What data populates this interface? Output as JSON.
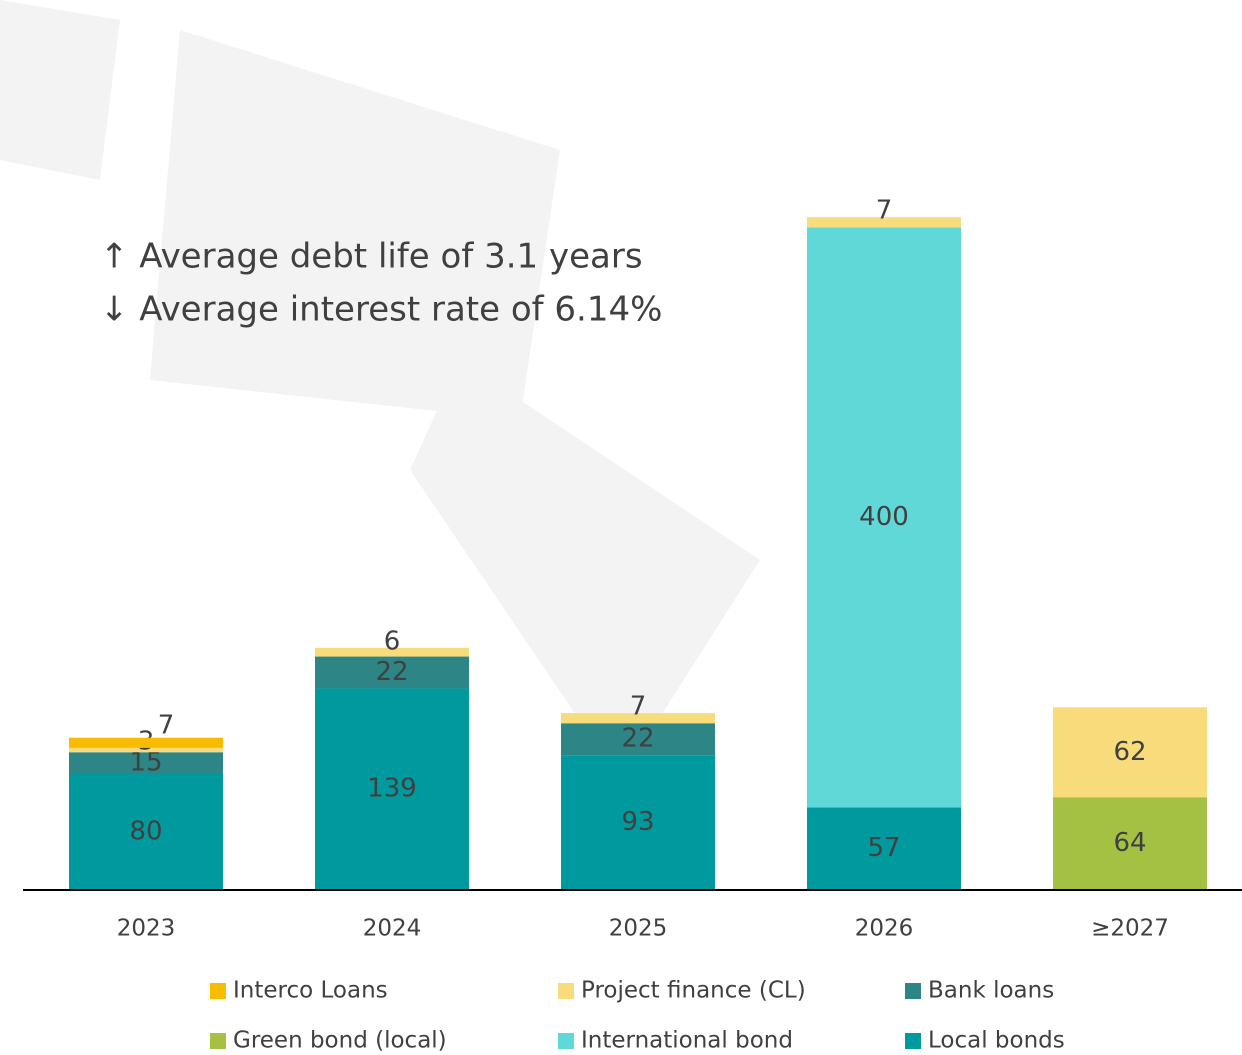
{
  "chart_data": {
    "type": "stacked_bar",
    "annotations": [
      "↑ Average debt life of 3.1 years",
      "↓ Average interest rate of 6.14%"
    ],
    "categories": [
      "2023",
      "2024",
      "2025",
      "2026",
      "≥2027"
    ],
    "series": [
      {
        "name": "Local bonds",
        "color": "#009a9e",
        "values": [
          80,
          139,
          93,
          57,
          null
        ]
      },
      {
        "name": "Green bond (local)",
        "color": "#a5c144",
        "values": [
          null,
          null,
          null,
          null,
          64
        ]
      },
      {
        "name": "International bond",
        "color": "#60d8d8",
        "values": [
          null,
          null,
          null,
          400,
          null
        ]
      },
      {
        "name": "Bank loans",
        "color": "#2e8585",
        "values": [
          15,
          22,
          22,
          null,
          null
        ]
      },
      {
        "name": "Project finance (CL)",
        "color": "#f8dc7b",
        "values": [
          3,
          6,
          7,
          7,
          62
        ]
      },
      {
        "name": "Interco Loans",
        "color": "#f7bc00",
        "values": [
          7,
          null,
          null,
          null,
          null
        ]
      }
    ],
    "ylim": [
      0,
      500
    ]
  }
}
